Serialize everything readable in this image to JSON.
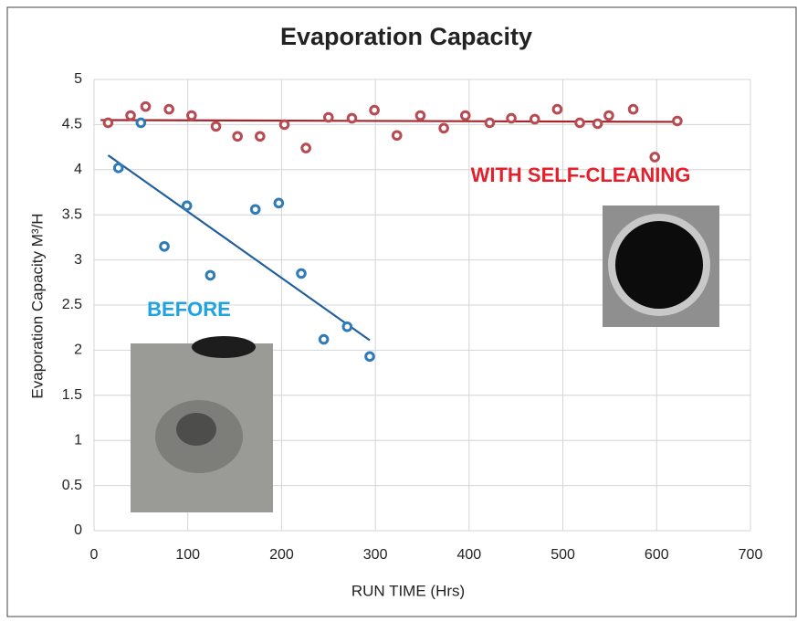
{
  "chart_data": {
    "type": "scatter",
    "title": "Evaporation Capacity",
    "xlabel": "RUN TIME (Hrs)",
    "ylabel": "Evaporation Capacity M³/H",
    "xlim": [
      0,
      700
    ],
    "xticks": [
      0,
      100,
      200,
      300,
      400,
      500,
      600,
      700
    ],
    "ylim": [
      0,
      5
    ],
    "yticks": [
      0,
      0.5,
      1,
      1.5,
      2,
      2.5,
      3,
      3.5,
      4,
      4.5,
      5
    ],
    "grid": true,
    "series": [
      {
        "color": "#b84a52",
        "line_color": "#a3262c",
        "x": [
          15,
          39,
          55,
          80,
          104,
          130,
          153,
          177,
          203,
          226,
          250,
          275,
          299,
          323,
          348,
          373,
          396,
          422,
          445,
          470,
          494,
          518,
          537,
          549,
          575,
          598,
          622
        ],
        "values": [
          4.52,
          4.6,
          4.7,
          4.67,
          4.6,
          4.48,
          4.37,
          4.37,
          4.5,
          4.24,
          4.58,
          4.57,
          4.66,
          4.38,
          4.6,
          4.46,
          4.6,
          4.52,
          4.57,
          4.56,
          4.67,
          4.52,
          4.51,
          4.6,
          4.67,
          4.14,
          4.54
        ],
        "trend_x": [
          7,
          625
        ],
        "trend_values": [
          4.55,
          4.53
        ]
      },
      {
        "color": "#2f7bb8",
        "line_color": "#1f5f9e",
        "x": [
          26,
          50,
          75,
          99,
          124,
          172,
          197,
          221,
          245,
          270,
          294
        ],
        "values": [
          4.02,
          4.52,
          3.15,
          3.6,
          2.83,
          3.56,
          3.63,
          2.85,
          2.12,
          2.26,
          1.93
        ],
        "trend_x": [
          15,
          294
        ],
        "trend_values": [
          4.16,
          2.11
        ]
      }
    ],
    "annotations": [
      {
        "text": "WITH SELF-CLEANING",
        "color": "#e3202b"
      },
      {
        "text": "BEFORE",
        "color": "#1fa3e0"
      }
    ]
  }
}
